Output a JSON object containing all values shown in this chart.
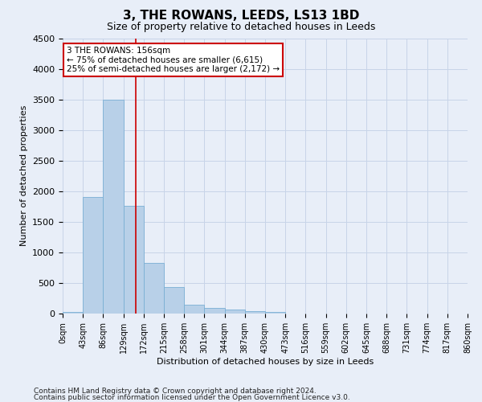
{
  "title": "3, THE ROWANS, LEEDS, LS13 1BD",
  "subtitle": "Size of property relative to detached houses in Leeds",
  "xlabel": "Distribution of detached houses by size in Leeds",
  "ylabel": "Number of detached properties",
  "footnote1": "Contains HM Land Registry data © Crown copyright and database right 2024.",
  "footnote2": "Contains public sector information licensed under the Open Government Licence v3.0.",
  "bin_labels": [
    "0sqm",
    "43sqm",
    "86sqm",
    "129sqm",
    "172sqm",
    "215sqm",
    "258sqm",
    "301sqm",
    "344sqm",
    "387sqm",
    "430sqm",
    "473sqm",
    "516sqm",
    "559sqm",
    "602sqm",
    "645sqm",
    "688sqm",
    "731sqm",
    "774sqm",
    "817sqm",
    "860sqm"
  ],
  "bar_heights": [
    30,
    1900,
    3500,
    1760,
    830,
    440,
    150,
    90,
    65,
    45,
    30,
    0,
    0,
    0,
    0,
    0,
    0,
    0,
    0,
    0
  ],
  "bar_color": "#b8d0e8",
  "bar_edge_color": "#7aafd4",
  "vline_x": 156,
  "bin_width": 43,
  "ylim": [
    0,
    4500
  ],
  "yticks": [
    0,
    500,
    1000,
    1500,
    2000,
    2500,
    3000,
    3500,
    4000,
    4500
  ],
  "annotation_line1": "3 THE ROWANS: 156sqm",
  "annotation_line2": "← 75% of detached houses are smaller (6,615)",
  "annotation_line3": "25% of semi-detached houses are larger (2,172) →",
  "annotation_box_color": "#ffffff",
  "annotation_box_edge_color": "#cc0000",
  "vline_color": "#cc0000",
  "grid_color": "#c8d4e8",
  "background_color": "#e8eef8"
}
